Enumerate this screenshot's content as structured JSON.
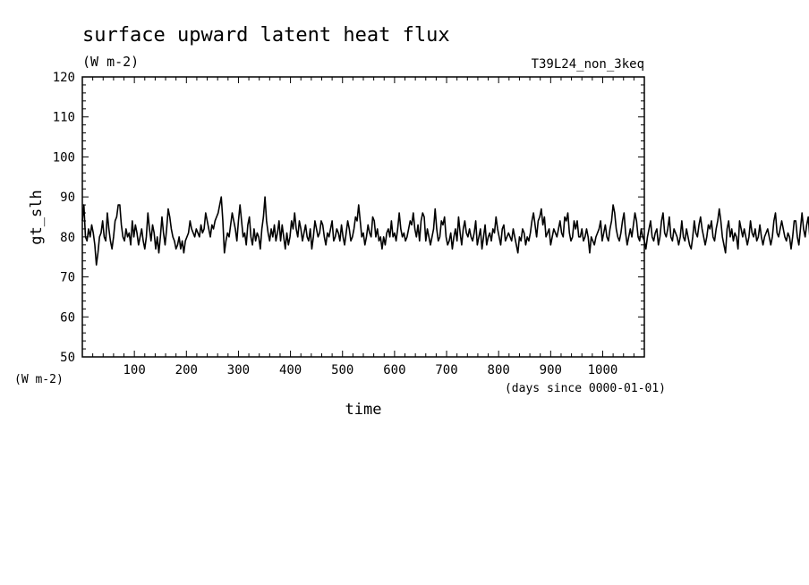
{
  "chart_data": {
    "type": "line",
    "title": "surface upward latent heat flux",
    "subtitle": "(W m-2)",
    "case_label": "T39L24_non_3keq",
    "ylabel": "gt_slh",
    "yunits": "(W m-2)",
    "xlabel": "time",
    "xunits": "(days since 0000-01-01)",
    "xlim": [
      0,
      1080
    ],
    "ylim": [
      50,
      120
    ],
    "xticks": [
      100,
      200,
      300,
      400,
      500,
      600,
      700,
      800,
      900,
      1000
    ],
    "yticks": [
      50,
      60,
      70,
      80,
      90,
      100,
      110,
      120
    ],
    "grid": false,
    "series": [
      {
        "step": 3,
        "values": [
          84,
          88,
          80,
          79,
          82,
          80,
          83,
          81,
          78,
          73,
          76,
          80,
          81,
          84,
          80,
          79,
          86,
          82,
          79,
          77,
          80,
          84,
          85,
          88,
          88,
          83,
          80,
          79,
          82,
          80,
          81,
          78,
          84,
          80,
          83,
          81,
          78,
          80,
          82,
          79,
          77,
          80,
          86,
          82,
          79,
          83,
          81,
          77,
          80,
          76,
          80,
          85,
          81,
          78,
          82,
          87,
          85,
          82,
          80,
          79,
          77,
          78,
          80,
          77,
          79,
          76,
          79,
          80,
          81,
          84,
          82,
          81,
          80,
          82,
          81,
          80,
          83,
          81,
          82,
          86,
          84,
          82,
          80,
          83,
          82,
          84,
          85,
          86,
          88,
          90,
          84,
          76,
          79,
          81,
          80,
          83,
          86,
          84,
          82,
          79,
          84,
          88,
          84,
          80,
          81,
          78,
          83,
          85,
          80,
          78,
          82,
          79,
          81,
          80,
          77,
          82,
          85,
          90,
          84,
          81,
          79,
          82,
          80,
          83,
          79,
          81,
          84,
          79,
          83,
          80,
          77,
          81,
          78,
          80,
          84,
          82,
          86,
          82,
          80,
          84,
          82,
          79,
          81,
          83,
          80,
          79,
          82,
          77,
          80,
          84,
          82,
          80,
          81,
          84,
          83,
          80,
          78,
          81,
          80,
          82,
          84,
          79,
          80,
          82,
          81,
          79,
          83,
          80,
          78,
          81,
          84,
          82,
          79,
          80,
          82,
          85,
          84,
          88,
          84,
          80,
          81,
          78,
          80,
          83,
          81,
          80,
          85,
          84,
          80,
          82,
          79,
          80,
          77,
          80,
          78,
          81,
          82,
          80,
          84,
          80,
          81,
          79,
          82,
          86,
          82,
          80,
          81,
          79,
          80,
          82,
          84,
          83,
          86,
          82,
          80,
          83,
          79,
          84,
          86,
          85,
          79,
          82,
          80,
          78,
          80,
          82,
          87,
          82,
          79,
          80,
          84,
          83,
          85,
          80,
          78,
          79,
          81,
          77,
          80,
          82,
          79,
          85,
          81,
          78,
          82,
          84,
          81,
          80,
          82,
          80,
          79,
          81,
          84,
          78,
          80,
          82,
          77,
          80,
          83,
          78,
          80,
          81,
          79,
          82,
          81,
          85,
          82,
          80,
          78,
          82,
          83,
          79,
          80,
          81,
          80,
          79,
          82,
          80,
          78,
          76,
          80,
          79,
          82,
          81,
          78,
          80,
          79,
          81,
          84,
          86,
          83,
          80,
          84,
          85,
          87,
          83,
          85,
          80,
          81,
          82,
          78,
          80,
          82,
          81,
          80,
          82,
          84,
          81,
          80,
          85,
          84,
          86,
          81,
          79,
          80,
          84,
          82,
          84,
          80,
          80,
          82,
          79,
          80,
          82,
          80,
          76,
          80,
          79,
          78,
          80,
          81,
          82,
          84,
          79,
          81,
          83,
          80,
          79,
          82,
          84,
          88,
          86,
          82,
          80,
          79,
          81,
          84,
          86,
          81,
          78,
          80,
          82,
          80,
          83,
          86,
          84,
          80,
          79,
          82,
          80,
          79,
          77,
          80,
          82,
          84,
          80,
          79,
          81,
          82,
          78,
          80,
          84,
          86,
          81,
          80,
          82,
          85,
          80,
          79,
          82,
          81,
          80,
          78,
          80,
          84,
          80,
          79,
          82,
          80,
          78,
          77,
          80,
          84,
          81,
          80,
          83,
          85,
          82,
          80,
          78,
          80,
          83,
          82,
          84,
          80,
          79,
          82,
          84,
          87,
          84,
          80,
          78,
          76,
          82,
          84,
          80,
          82,
          79,
          81,
          80,
          77,
          84,
          82,
          80,
          82,
          80,
          78,
          80,
          84,
          81,
          80,
          82,
          79,
          80,
          83,
          80,
          78,
          80,
          81,
          82,
          80,
          78,
          80,
          84,
          86,
          81,
          80,
          82,
          84,
          82,
          80,
          79,
          81,
          80,
          77,
          80,
          84,
          84,
          80,
          78,
          82,
          86,
          82,
          80,
          83,
          85,
          80,
          77,
          80,
          82,
          84,
          80,
          78,
          81,
          80,
          79,
          82,
          77,
          80,
          84,
          82,
          80,
          81,
          84,
          84,
          80,
          78,
          80,
          82,
          80,
          79,
          81,
          77,
          80,
          82,
          80,
          79,
          84,
          82,
          86,
          80,
          78,
          80,
          82,
          83,
          80,
          82,
          86,
          85,
          80,
          79,
          82,
          80,
          83,
          80,
          84,
          82,
          80,
          78,
          80,
          83,
          80,
          79,
          82,
          80,
          84,
          86,
          82,
          79,
          80,
          82,
          84,
          80,
          78,
          80,
          82,
          80,
          79,
          81,
          84,
          82,
          80,
          79,
          86,
          82,
          80,
          78,
          82,
          86,
          84,
          85,
          80,
          82,
          79,
          80,
          83,
          81,
          79,
          82,
          80,
          78,
          81,
          82,
          84,
          80,
          79,
          82,
          84,
          86,
          82,
          80,
          79,
          81,
          84,
          80,
          82,
          81,
          80,
          83,
          80,
          82,
          79,
          81,
          80,
          82,
          84,
          80,
          83,
          79,
          80,
          82,
          78,
          80,
          82,
          80,
          79,
          84,
          80,
          82,
          81,
          79,
          80,
          83,
          82,
          80,
          78,
          80,
          84,
          82,
          81,
          80,
          82,
          84,
          80,
          78,
          80,
          82,
          79,
          80,
          82,
          81,
          80,
          79,
          82,
          80,
          84,
          86,
          88,
          86,
          80,
          84,
          85,
          83,
          80,
          78,
          80,
          82,
          84,
          80,
          79,
          81,
          82,
          85,
          80,
          78,
          80,
          84,
          80,
          82,
          79,
          81,
          83,
          80,
          82,
          79,
          80,
          81,
          82,
          80,
          79,
          82,
          84,
          80,
          82,
          81,
          79,
          80,
          82,
          80,
          78,
          84,
          82,
          80,
          79,
          82,
          84,
          80,
          82,
          86,
          84,
          80,
          82,
          80,
          79,
          81,
          80,
          82,
          84,
          80,
          78,
          82,
          85,
          80,
          79,
          81,
          80,
          84,
          82,
          80,
          79,
          81,
          82,
          80,
          80,
          82,
          84,
          80,
          78,
          81,
          82,
          80,
          79,
          82,
          84,
          80,
          82,
          81,
          80,
          79,
          80,
          84,
          82,
          80,
          81,
          79,
          80,
          82,
          80,
          83,
          81,
          80,
          82,
          84,
          80,
          79,
          82,
          80,
          81,
          80,
          78,
          81,
          83,
          80,
          82,
          80,
          79,
          81,
          80,
          82,
          84,
          80,
          82,
          79,
          80,
          81,
          80,
          82,
          80,
          84,
          80,
          79,
          82,
          80,
          81,
          80,
          82
        ]
      }
    ]
  }
}
